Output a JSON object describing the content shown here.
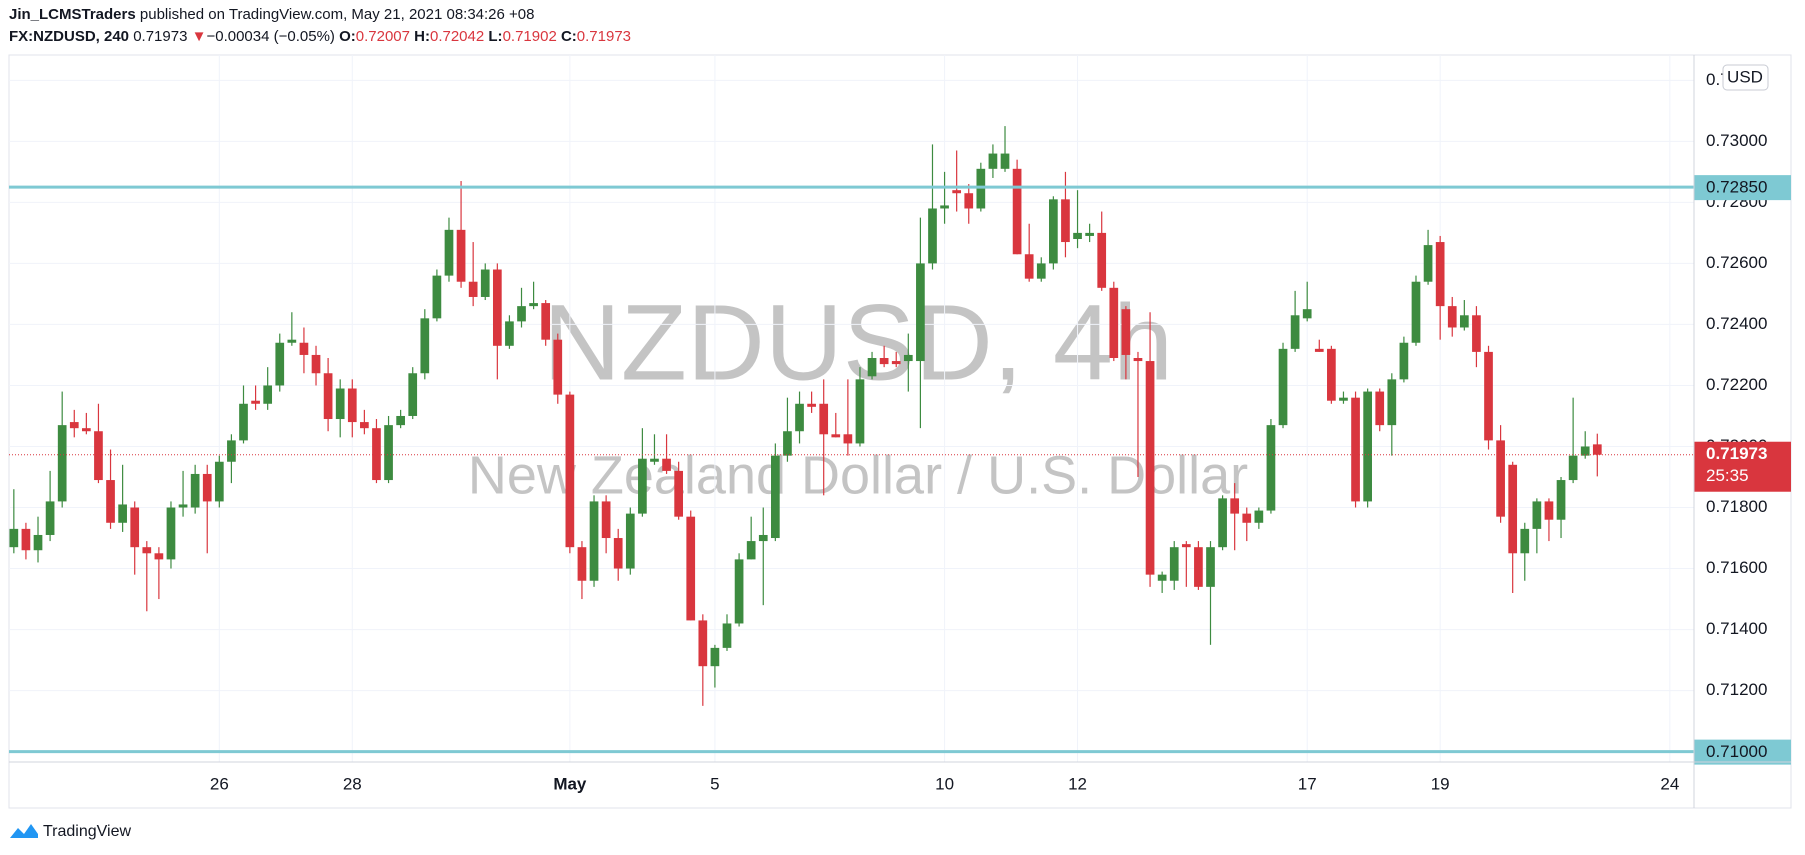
{
  "header": {
    "author": "Jin_LCMSTraders",
    "published": "published on TradingView.com, May 21, 2021 08:34:26 +08"
  },
  "brand": "TradingView",
  "chart_data": {
    "type": "candlestick",
    "symbol": "FX:NZDUSD, 240",
    "last": 0.71973,
    "change_arrow": "▼",
    "change": "−0.00034 (−0.05%)",
    "legend": [
      {
        "label": "O:",
        "value": 0.72007
      },
      {
        "label": "H:",
        "value": 0.72042
      },
      {
        "label": "L:",
        "value": 0.71902
      },
      {
        "label": "C:",
        "value": 0.71973
      }
    ],
    "watermark": {
      "symbol": "NZDUSD, 4h",
      "description": "New Zealand Dollar / U.S. Dollar"
    },
    "currency": "USD",
    "colors": {
      "up": "#3d8b40",
      "down": "#d9363e",
      "hline": "#7ec9d3"
    },
    "grid": true,
    "xlim": [
      -0.4,
      139
    ],
    "xticks": [
      {
        "value": 17,
        "label": "26"
      },
      {
        "value": 28,
        "label": "28"
      },
      {
        "value": 46,
        "label": "May"
      },
      {
        "value": 58,
        "label": "5"
      },
      {
        "value": 77,
        "label": "10"
      },
      {
        "value": 88,
        "label": "12"
      },
      {
        "value": 107,
        "label": "17"
      },
      {
        "value": 118,
        "label": "19"
      },
      {
        "value": 137,
        "label": "24"
      }
    ],
    "ylim": [
      0.70966,
      0.73283
    ],
    "yticks": [
      {
        "value": 0.712,
        "label": "0.71200"
      },
      {
        "value": 0.714,
        "label": "0.71400"
      },
      {
        "value": 0.716,
        "label": "0.71600"
      },
      {
        "value": 0.718,
        "label": "0.71800"
      },
      {
        "value": 0.72,
        "label": "0.72000"
      },
      {
        "value": 0.722,
        "label": "0.72200"
      },
      {
        "value": 0.724,
        "label": "0.72400"
      },
      {
        "value": 0.726,
        "label": "0.72600"
      },
      {
        "value": 0.728,
        "label": "0.72800"
      },
      {
        "value": 0.73,
        "label": "0.73000"
      },
      {
        "value": 0.732,
        "label": "0.73200"
      }
    ],
    "hlines": [
      {
        "value": 0.7285,
        "label": "0.72850"
      },
      {
        "value": 0.71,
        "label": "0.71000"
      }
    ],
    "last_price": {
      "value": 0.71973,
      "countdown": "25:35"
    },
    "open": [
      0.7167,
      0.7173,
      0.7166,
      0.7171,
      0.7182,
      0.7208,
      0.7206,
      0.7205,
      0.7189,
      0.7175,
      0.718,
      0.7167,
      0.7165,
      0.7163,
      0.718,
      0.718,
      0.7191,
      0.7182,
      0.7195,
      0.7202,
      0.7215,
      0.7214,
      0.722,
      0.7234,
      0.7234,
      0.723,
      0.7224,
      0.7209,
      0.7219,
      0.7208,
      0.7206,
      0.7189,
      0.7207,
      0.721,
      0.7224,
      0.7242,
      0.7256,
      0.7271,
      0.7254,
      0.7249,
      0.7258,
      0.7233,
      0.7241,
      0.7246,
      0.7247,
      0.7235,
      0.7217,
      0.7167,
      0.7156,
      0.7182,
      0.717,
      0.716,
      0.7178,
      0.7195,
      0.7196,
      0.7192,
      0.7177,
      0.7143,
      0.7128,
      0.7134,
      0.7142,
      0.7163,
      0.7169,
      0.717,
      0.7197,
      0.7205,
      0.7214,
      0.7214,
      0.7204,
      0.7204,
      0.7201,
      0.7223,
      0.7229,
      0.7228,
      0.7228,
      0.7228,
      0.726,
      0.7278,
      0.7284,
      0.7283,
      0.7278,
      0.7291,
      0.7291,
      0.7291,
      0.7263,
      0.7255,
      0.726,
      0.7281,
      0.7268,
      0.7269,
      0.727,
      0.7252,
      0.7245,
      0.7229,
      0.7228,
      0.7156,
      0.7156,
      0.7168,
      0.7167,
      0.7154,
      0.7167,
      0.7183,
      0.7178,
      0.7175,
      0.7179,
      0.7207,
      0.7232,
      0.7242,
      0.7232,
      0.7232,
      0.7215,
      0.7216,
      0.7182,
      0.7218,
      0.7207,
      0.7222,
      0.7234,
      0.7254,
      0.7267,
      0.7246,
      0.7239,
      0.7243,
      0.7231,
      0.7202,
      0.7194,
      0.7165,
      0.7173,
      0.7182,
      0.7176,
      0.7189,
      0.7197,
      0.72007
    ],
    "high": [
      0.7186,
      0.7175,
      0.7177,
      0.7192,
      0.7218,
      0.7212,
      0.7211,
      0.7214,
      0.7199,
      0.7194,
      0.7182,
      0.7169,
      0.7167,
      0.7182,
      0.7192,
      0.7194,
      0.7194,
      0.7197,
      0.7204,
      0.722,
      0.722,
      0.7226,
      0.7237,
      0.7244,
      0.7239,
      0.7233,
      0.7229,
      0.7222,
      0.7222,
      0.7212,
      0.7209,
      0.721,
      0.7212,
      0.7226,
      0.7245,
      0.7258,
      0.7275,
      0.7287,
      0.7267,
      0.726,
      0.726,
      0.7243,
      0.7252,
      0.7254,
      0.7248,
      0.7237,
      0.7218,
      0.7169,
      0.7184,
      0.7184,
      0.7173,
      0.718,
      0.7206,
      0.7204,
      0.7204,
      0.7195,
      0.7179,
      0.7145,
      0.7135,
      0.7145,
      0.7165,
      0.7177,
      0.718,
      0.7201,
      0.7216,
      0.7218,
      0.7218,
      0.7222,
      0.7211,
      0.7222,
      0.7226,
      0.7231,
      0.7233,
      0.7231,
      0.7237,
      0.7275,
      0.7299,
      0.729,
      0.7297,
      0.7286,
      0.7293,
      0.7299,
      0.7305,
      0.7294,
      0.7273,
      0.7262,
      0.7282,
      0.729,
      0.7284,
      0.7273,
      0.7277,
      0.7254,
      0.7246,
      0.7231,
      0.7244,
      0.7159,
      0.7169,
      0.7169,
      0.7169,
      0.7169,
      0.7184,
      0.7188,
      0.718,
      0.718,
      0.7209,
      0.7234,
      0.7251,
      0.7254,
      0.7235,
      0.7233,
      0.7218,
      0.7218,
      0.7219,
      0.7219,
      0.7224,
      0.7236,
      0.7256,
      0.7271,
      0.7269,
      0.7249,
      0.7248,
      0.7246,
      0.7233,
      0.7207,
      0.7195,
      0.7175,
      0.7183,
      0.7183,
      0.719,
      0.7216,
      0.7205,
      0.72042
    ],
    "low": [
      0.7165,
      0.7163,
      0.7162,
      0.7169,
      0.718,
      0.7203,
      0.7204,
      0.7188,
      0.7173,
      0.7172,
      0.7158,
      0.7146,
      0.715,
      0.716,
      0.7177,
      0.7178,
      0.7165,
      0.718,
      0.7188,
      0.7201,
      0.7212,
      0.7212,
      0.7218,
      0.7233,
      0.7224,
      0.722,
      0.7205,
      0.7203,
      0.7203,
      0.7204,
      0.7188,
      0.7188,
      0.7206,
      0.7209,
      0.7222,
      0.7241,
      0.7254,
      0.7252,
      0.7246,
      0.7248,
      0.7222,
      0.7232,
      0.7239,
      0.7245,
      0.7233,
      0.7214,
      0.7165,
      0.715,
      0.7154,
      0.7165,
      0.7156,
      0.7158,
      0.7177,
      0.7194,
      0.7191,
      0.7176,
      0.7143,
      0.7115,
      0.7121,
      0.7133,
      0.7141,
      0.7163,
      0.7148,
      0.7169,
      0.7195,
      0.7201,
      0.7211,
      0.7184,
      0.7203,
      0.7197,
      0.72,
      0.7222,
      0.7226,
      0.7226,
      0.7218,
      0.7206,
      0.7258,
      0.7273,
      0.7277,
      0.7273,
      0.7277,
      0.7288,
      0.729,
      0.7263,
      0.7254,
      0.7254,
      0.7258,
      0.7262,
      0.7265,
      0.7267,
      0.7251,
      0.7228,
      0.7222,
      0.719,
      0.7154,
      0.7152,
      0.7153,
      0.7154,
      0.7153,
      0.7135,
      0.7166,
      0.7166,
      0.7169,
      0.7173,
      0.7178,
      0.7206,
      0.7231,
      0.7241,
      0.7231,
      0.7214,
      0.7214,
      0.718,
      0.718,
      0.7205,
      0.7197,
      0.7221,
      0.7233,
      0.7253,
      0.7235,
      0.7236,
      0.7238,
      0.7226,
      0.7199,
      0.7175,
      0.7152,
      0.7156,
      0.7165,
      0.7169,
      0.717,
      0.7188,
      0.7196,
      0.71902
    ],
    "close": [
      0.7173,
      0.7166,
      0.7171,
      0.7182,
      0.7207,
      0.7206,
      0.7205,
      0.7189,
      0.7175,
      0.7181,
      0.7167,
      0.7165,
      0.7163,
      0.718,
      0.7181,
      0.7191,
      0.7182,
      0.7195,
      0.7202,
      0.7214,
      0.7214,
      0.722,
      0.7234,
      0.7235,
      0.723,
      0.7224,
      0.7209,
      0.7219,
      0.7208,
      0.7206,
      0.7189,
      0.7207,
      0.721,
      0.7224,
      0.7242,
      0.7256,
      0.7271,
      0.7254,
      0.7249,
      0.7258,
      0.7233,
      0.7241,
      0.7246,
      0.7247,
      0.7235,
      0.7217,
      0.7167,
      0.7156,
      0.7182,
      0.717,
      0.716,
      0.7178,
      0.7196,
      0.7196,
      0.7192,
      0.7177,
      0.7143,
      0.7128,
      0.7134,
      0.7142,
      0.7163,
      0.7169,
      0.7171,
      0.7197,
      0.7205,
      0.7214,
      0.7213,
      0.7204,
      0.7203,
      0.7201,
      0.7222,
      0.7229,
      0.7227,
      0.7227,
      0.723,
      0.726,
      0.7278,
      0.7279,
      0.7283,
      0.7278,
      0.7291,
      0.7296,
      0.7296,
      0.7263,
      0.7255,
      0.726,
      0.7281,
      0.7267,
      0.727,
      0.727,
      0.7252,
      0.7229,
      0.723,
      0.7228,
      0.7158,
      0.7158,
      0.7167,
      0.7167,
      0.7154,
      0.7167,
      0.7183,
      0.7178,
      0.7175,
      0.7179,
      0.7207,
      0.7232,
      0.7243,
      0.7245,
      0.7231,
      0.7215,
      0.7216,
      0.7182,
      0.7218,
      0.7207,
      0.7222,
      0.7234,
      0.7254,
      0.7266,
      0.7246,
      0.7239,
      0.7243,
      0.7231,
      0.7202,
      0.7177,
      0.7165,
      0.7173,
      0.7182,
      0.7176,
      0.7189,
      0.7197,
      0.72,
      0.71973
    ]
  }
}
